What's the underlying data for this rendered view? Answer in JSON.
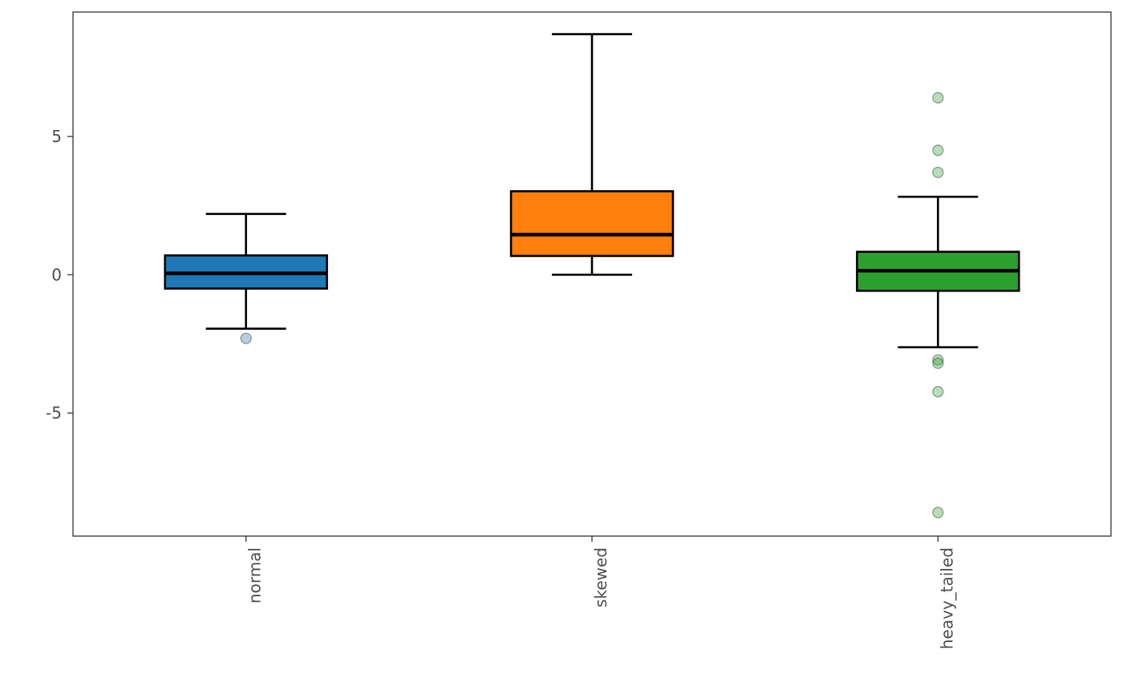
{
  "chart_data": {
    "type": "boxplot",
    "title": "",
    "xlabel": "",
    "ylabel": "",
    "categories": [
      "normal",
      "skewed",
      "heavy_tailed"
    ],
    "ylim": [
      -9.45,
      9.5
    ],
    "yticks": [
      -5,
      0,
      5
    ],
    "ytick_labels": [
      "-5",
      "0",
      "5"
    ],
    "grid": false,
    "legend": "none",
    "boxes": [
      {
        "category": "normal",
        "whisker_low": -1.95,
        "q1": -0.5,
        "median": 0.05,
        "q3": 0.7,
        "whisker_high": 2.2,
        "outliers": [
          -2.3
        ],
        "color": "#1f77b4"
      },
      {
        "category": "skewed",
        "whisker_low": 0.0,
        "q1": 0.68,
        "median": 1.45,
        "q3": 3.02,
        "whisker_high": 8.7,
        "outliers": [],
        "color": "#ff7f0e"
      },
      {
        "category": "heavy_tailed",
        "whisker_low": -2.62,
        "q1": -0.58,
        "median": 0.15,
        "q3": 0.83,
        "whisker_high": 2.82,
        "outliers": [
          6.4,
          4.5,
          3.7,
          -3.08,
          -3.2,
          -4.23,
          -8.6
        ],
        "color": "#2ca02c"
      }
    ]
  }
}
